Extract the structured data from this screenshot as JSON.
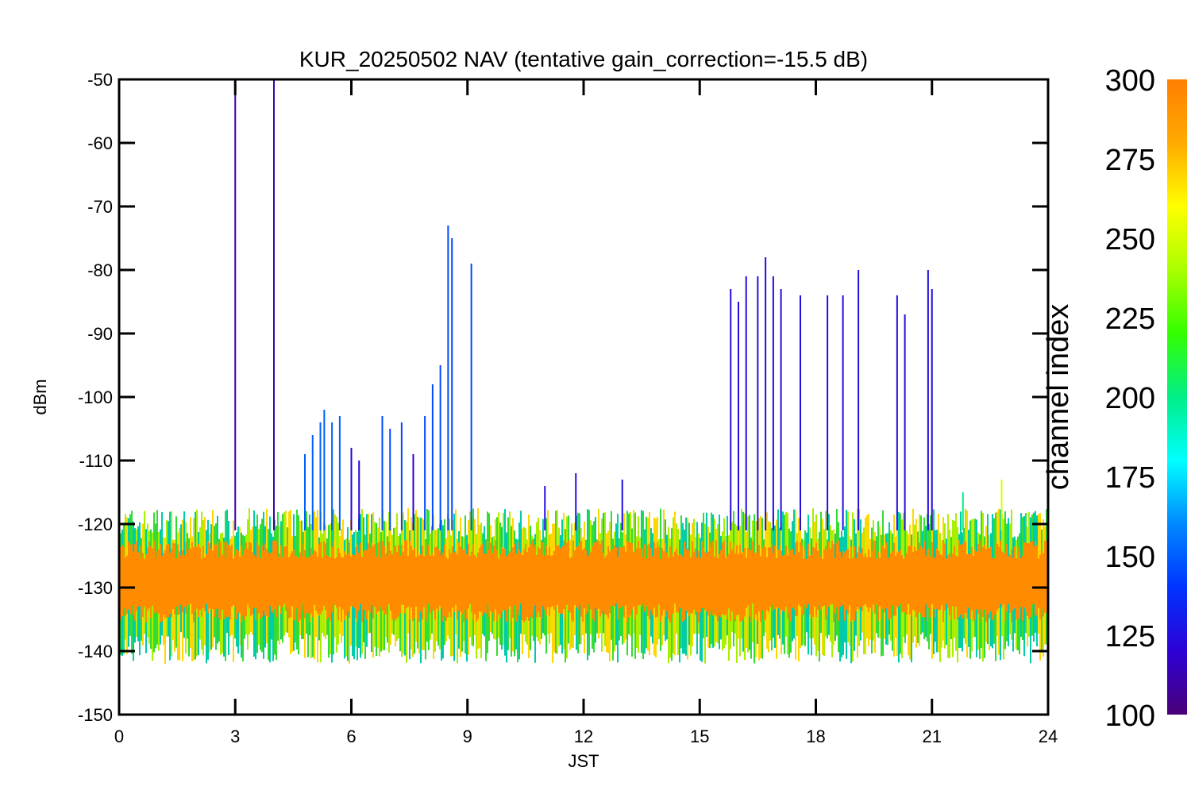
{
  "chart_data": {
    "type": "line",
    "title": "KUR_20250502 NAV (tentative gain_correction=-15.5 dB)",
    "xlabel": "JST",
    "ylabel": "dBm",
    "xlim": [
      0,
      24
    ],
    "ylim": [
      -150,
      -50
    ],
    "x_ticks": [
      0,
      3,
      6,
      9,
      12,
      15,
      18,
      21,
      24
    ],
    "y_ticks": [
      -50,
      -60,
      -70,
      -80,
      -90,
      -100,
      -110,
      -120,
      -130,
      -140,
      -150
    ],
    "grid": false,
    "colorbar": {
      "label": "channel index",
      "range": [
        100,
        300
      ],
      "ticks": [
        300,
        275,
        250,
        225,
        200,
        175,
        150,
        125,
        100
      ],
      "colormap": "rainbow",
      "stops": [
        "#4a0078",
        "#2d00d6",
        "#0033ff",
        "#0088ff",
        "#00ffff",
        "#00ee88",
        "#33ff00",
        "#aaff00",
        "#ffff00",
        "#ffaa00",
        "#ff7f00"
      ]
    },
    "noise_floor": {
      "center_dBm": -129,
      "upper_edge_dBm": -122,
      "lower_edge_dBm": -137,
      "core_color": "#ff8c00",
      "edge_colors": [
        "#ffd700",
        "#aaee00",
        "#33dd33",
        "#00ccaa"
      ]
    },
    "spike_series": [
      {
        "x": 3.0,
        "peak": -50,
        "channel": 110
      },
      {
        "x": 4.0,
        "peak": -50,
        "channel": 110
      },
      {
        "x": 4.8,
        "peak": -109,
        "channel": 150
      },
      {
        "x": 5.0,
        "peak": -106,
        "channel": 150
      },
      {
        "x": 5.2,
        "peak": -104,
        "channel": 150
      },
      {
        "x": 5.3,
        "peak": -102,
        "channel": 150
      },
      {
        "x": 5.5,
        "peak": -104,
        "channel": 150
      },
      {
        "x": 5.7,
        "peak": -103,
        "channel": 150
      },
      {
        "x": 6.0,
        "peak": -108,
        "channel": 120
      },
      {
        "x": 6.2,
        "peak": -110,
        "channel": 120
      },
      {
        "x": 6.8,
        "peak": -103,
        "channel": 145
      },
      {
        "x": 7.0,
        "peak": -105,
        "channel": 145
      },
      {
        "x": 7.3,
        "peak": -104,
        "channel": 145
      },
      {
        "x": 7.6,
        "peak": -109,
        "channel": 120
      },
      {
        "x": 7.9,
        "peak": -103,
        "channel": 145
      },
      {
        "x": 8.1,
        "peak": -98,
        "channel": 145
      },
      {
        "x": 8.3,
        "peak": -95,
        "channel": 145
      },
      {
        "x": 8.5,
        "peak": -73,
        "channel": 145
      },
      {
        "x": 8.6,
        "peak": -75,
        "channel": 145
      },
      {
        "x": 9.1,
        "peak": -79,
        "channel": 145
      },
      {
        "x": 11.0,
        "peak": -114,
        "channel": 125
      },
      {
        "x": 11.8,
        "peak": -112,
        "channel": 125
      },
      {
        "x": 13.0,
        "peak": -113,
        "channel": 125
      },
      {
        "x": 15.8,
        "peak": -83,
        "channel": 125
      },
      {
        "x": 16.0,
        "peak": -85,
        "channel": 125
      },
      {
        "x": 16.2,
        "peak": -81,
        "channel": 125
      },
      {
        "x": 16.5,
        "peak": -81,
        "channel": 125
      },
      {
        "x": 16.7,
        "peak": -78,
        "channel": 125
      },
      {
        "x": 16.9,
        "peak": -81,
        "channel": 125
      },
      {
        "x": 17.1,
        "peak": -83,
        "channel": 125
      },
      {
        "x": 17.6,
        "peak": -84,
        "channel": 125
      },
      {
        "x": 18.3,
        "peak": -84,
        "channel": 125
      },
      {
        "x": 18.7,
        "peak": -84,
        "channel": 125
      },
      {
        "x": 19.1,
        "peak": -80,
        "channel": 125
      },
      {
        "x": 20.1,
        "peak": -84,
        "channel": 125
      },
      {
        "x": 20.3,
        "peak": -87,
        "channel": 125
      },
      {
        "x": 20.9,
        "peak": -80,
        "channel": 125
      },
      {
        "x": 21.0,
        "peak": -83,
        "channel": 125
      },
      {
        "x": 21.8,
        "peak": -115,
        "channel": 200
      },
      {
        "x": 22.8,
        "peak": -113,
        "channel": 250
      }
    ]
  }
}
